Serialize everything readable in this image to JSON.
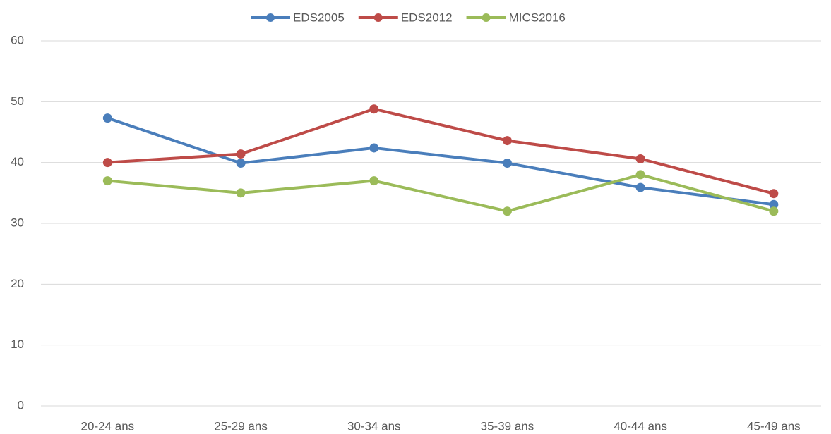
{
  "chart_data": {
    "type": "line",
    "categories": [
      "20-24 ans",
      "25-29 ans",
      "30-34 ans",
      "35-39 ans",
      "40-44 ans",
      "45-49 ans"
    ],
    "series": [
      {
        "name": "EDS2005",
        "color": "#4a7ebb",
        "values": [
          47.3,
          39.9,
          42.4,
          39.9,
          35.9,
          33.1
        ]
      },
      {
        "name": "EDS2012",
        "color": "#be4b48",
        "values": [
          40,
          41.4,
          48.8,
          43.6,
          40.6,
          34.9
        ]
      },
      {
        "name": "MICS2016",
        "color": "#9bbb59",
        "values": [
          37,
          35,
          37,
          32,
          38,
          32
        ]
      }
    ],
    "ylim": [
      0,
      60
    ],
    "yticks": [
      0,
      10,
      20,
      30,
      40,
      50,
      60
    ],
    "grid": true,
    "legend": "top"
  }
}
